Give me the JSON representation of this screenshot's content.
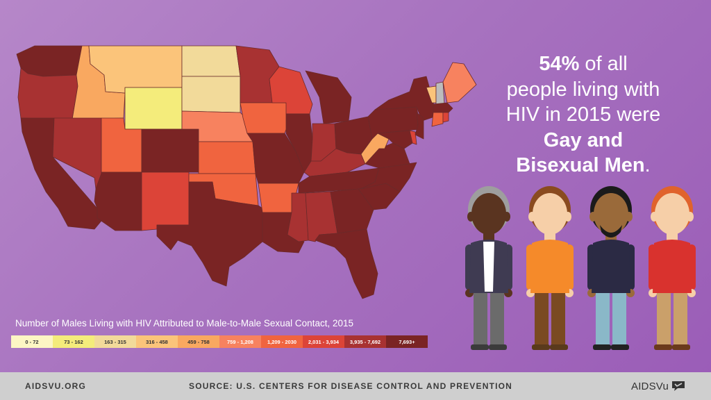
{
  "headline": {
    "pct": "54%",
    "line1_rest": " of all",
    "line2": "people living with",
    "line3": "HIV in 2015 were",
    "bold_line1": "Gay and",
    "bold_line2": "Bisexual Men",
    "end_punct": "."
  },
  "legend": {
    "title": "Number of Males Living with HIV Attributed to Male-to-Male Sexual Contact, 2015",
    "items": [
      {
        "label": "0 - 72",
        "color": "#fdf6c4",
        "text_color": "#333333"
      },
      {
        "label": "73 - 162",
        "color": "#f4ec7b",
        "text_color": "#333333"
      },
      {
        "label": "163 - 315",
        "color": "#f2da9a",
        "text_color": "#333333"
      },
      {
        "label": "316 - 458",
        "color": "#fbc47a",
        "text_color": "#333333"
      },
      {
        "label": "459 - 758",
        "color": "#f9a860",
        "text_color": "#333333"
      },
      {
        "label": "759 - 1,208",
        "color": "#f7825f",
        "text_color": "#ffffff"
      },
      {
        "label": "1,209 - 2030",
        "color": "#f0643f",
        "text_color": "#ffffff"
      },
      {
        "label": "2,031 - 3,934",
        "color": "#dc4438",
        "text_color": "#ffffff"
      },
      {
        "label": "3,935 - 7,692",
        "color": "#a83232",
        "text_color": "#ffffff"
      },
      {
        "label": "7,693+",
        "color": "#7a2424",
        "text_color": "#ffffff"
      }
    ]
  },
  "map": {
    "border_color": "#6b2a2a",
    "states": [
      {
        "name": "washington",
        "color": "#7a2424"
      },
      {
        "name": "oregon",
        "color": "#a83232"
      },
      {
        "name": "california",
        "color": "#7a2424"
      },
      {
        "name": "idaho",
        "color": "#f9a860"
      },
      {
        "name": "nevada",
        "color": "#a83232"
      },
      {
        "name": "montana",
        "color": "#fbc47a"
      },
      {
        "name": "wyoming",
        "color": "#f4ec7b"
      },
      {
        "name": "utah",
        "color": "#f0643f"
      },
      {
        "name": "arizona",
        "color": "#7a2424"
      },
      {
        "name": "colorado",
        "color": "#7a2424"
      },
      {
        "name": "new-mexico",
        "color": "#dc4438"
      },
      {
        "name": "north-dakota",
        "color": "#f2da9a"
      },
      {
        "name": "south-dakota",
        "color": "#f2da9a"
      },
      {
        "name": "nebraska",
        "color": "#f7825f"
      },
      {
        "name": "kansas",
        "color": "#f0643f"
      },
      {
        "name": "oklahoma",
        "color": "#f0643f"
      },
      {
        "name": "texas",
        "color": "#7a2424"
      },
      {
        "name": "minnesota",
        "color": "#a83232"
      },
      {
        "name": "iowa",
        "color": "#f0643f"
      },
      {
        "name": "missouri",
        "color": "#7a2424"
      },
      {
        "name": "arkansas",
        "color": "#f0643f"
      },
      {
        "name": "louisiana",
        "color": "#7a2424"
      },
      {
        "name": "wisconsin",
        "color": "#dc4438"
      },
      {
        "name": "illinois",
        "color": "#7a2424"
      },
      {
        "name": "michigan",
        "color": "#7a2424"
      },
      {
        "name": "indiana",
        "color": "#a83232"
      },
      {
        "name": "ohio",
        "color": "#7a2424"
      },
      {
        "name": "kentucky",
        "color": "#a83232"
      },
      {
        "name": "tennessee",
        "color": "#7a2424"
      },
      {
        "name": "mississippi",
        "color": "#a83232"
      },
      {
        "name": "alabama",
        "color": "#a83232"
      },
      {
        "name": "georgia",
        "color": "#7a2424"
      },
      {
        "name": "florida",
        "color": "#7a2424"
      },
      {
        "name": "south-carolina",
        "color": "#7a2424"
      },
      {
        "name": "north-carolina",
        "color": "#7a2424"
      },
      {
        "name": "virginia",
        "color": "#7a2424"
      },
      {
        "name": "west-virginia",
        "color": "#f9a860"
      },
      {
        "name": "pennsylvania",
        "color": "#7a2424"
      },
      {
        "name": "new-york",
        "color": "#7a2424"
      },
      {
        "name": "maryland",
        "color": "#7a2424"
      },
      {
        "name": "delaware",
        "color": "#dc4438"
      },
      {
        "name": "new-jersey",
        "color": "#7a2424"
      },
      {
        "name": "vermont",
        "color": "#fbc47a"
      },
      {
        "name": "new-hampshire",
        "color": "#bcbcbc"
      },
      {
        "name": "maine",
        "color": "#f7825f"
      },
      {
        "name": "massachusetts",
        "color": "#7a2424"
      },
      {
        "name": "connecticut",
        "color": "#f0643f"
      },
      {
        "name": "rhode-island",
        "color": "#dc4438"
      }
    ]
  },
  "footer": {
    "url": "AIDSVU.ORG",
    "source": "SOURCE: U.S. CENTERS FOR DISEASE CONTROL AND PREVENTION",
    "logo_text": "AIDSVu",
    "logo_icon": "speech-bubble-icon"
  },
  "figures": [
    {
      "name": "older-man-figure",
      "skin": "#5a3420",
      "hair": "#9e9e9e",
      "top": "#3f3b52",
      "pants": "#6b6b6b",
      "shoes": "#3b3b3b"
    },
    {
      "name": "orange-shirt-man-figure",
      "skin": "#f6cfa8",
      "hair": "#8a4b1f",
      "top": "#f58a2a",
      "pants": "#7a4a22",
      "shoes": "#5a3a1c"
    },
    {
      "name": "navy-sweater-man-figure",
      "skin": "#9a6a3a",
      "hair": "#1b1b1b",
      "top": "#2b2a44",
      "pants": "#8ab8c8",
      "shoes": "#222222"
    },
    {
      "name": "red-shirt-man-figure",
      "skin": "#f6cfa8",
      "hair": "#e0632c",
      "top": "#d9322e",
      "pants": "#caa06a",
      "shoes": "#6b3a1c"
    }
  ]
}
